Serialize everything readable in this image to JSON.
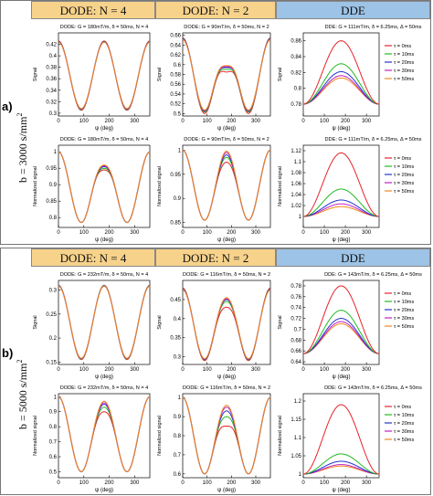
{
  "blocks": [
    {
      "letter": "a)",
      "b_text": "b = 3000 s/mm",
      "b_exp": "2",
      "headers": [
        "DODE: N = 4",
        "DODE: N = 2",
        "DDE"
      ]
    },
    {
      "letter": "b)",
      "b_text": "b = 5000 s/mm",
      "b_exp": "2",
      "headers": [
        "DODE: N = 4",
        "DODE: N = 2",
        "DDE"
      ]
    }
  ],
  "legend_labels": [
    "τ = 0ms",
    "τ = 10ms",
    "τ = 20ms",
    "τ = 30ms",
    "τ = 50ms"
  ],
  "series_colors": [
    "#e8232a",
    "#22bb22",
    "#2233cc",
    "#c020c0",
    "#f08a1e"
  ],
  "chart_data": [
    {
      "id": "a-r1-c1",
      "type": "line",
      "title": "DODE: G = 180mT/m, δ = 50ms, N = 4",
      "xlabel": "ψ (deg)",
      "ylabel": "Signal",
      "xlim": [
        0,
        360
      ],
      "xticks": [
        0,
        100,
        200,
        300
      ],
      "ylim": [
        0.295,
        0.44
      ],
      "yticks": [
        0.3,
        0.32,
        0.34,
        0.36,
        0.38,
        0.4,
        0.42
      ],
      "x": [
        0,
        20,
        40,
        60,
        80,
        100,
        120,
        140,
        160,
        180,
        200,
        220,
        240,
        260,
        280,
        300,
        320,
        340,
        360
      ],
      "shape": "n4",
      "series": [
        {
          "name": "τ = 0ms",
          "min": 0.305,
          "max": 0.426
        },
        {
          "name": "τ = 10ms",
          "min": 0.306,
          "max": 0.425
        },
        {
          "name": "τ = 20ms",
          "min": 0.307,
          "max": 0.425
        },
        {
          "name": "τ = 30ms",
          "min": 0.307,
          "max": 0.424
        },
        {
          "name": "τ = 50ms",
          "min": 0.308,
          "max": 0.424
        }
      ],
      "legend": false
    },
    {
      "id": "a-r1-c2",
      "type": "line",
      "title": "DODE: G = 90mT/m, δ = 50ms, N = 2",
      "xlabel": "ψ (deg)",
      "ylabel": "Signal",
      "xlim": [
        0,
        360
      ],
      "xticks": [
        0,
        100,
        200,
        300
      ],
      "ylim": [
        0.495,
        0.665
      ],
      "yticks": [
        0.5,
        0.52,
        0.54,
        0.56,
        0.58,
        0.6,
        0.62,
        0.64,
        0.66
      ],
      "x": [
        0,
        20,
        40,
        60,
        80,
        100,
        120,
        140,
        160,
        180,
        200,
        220,
        240,
        260,
        280,
        300,
        320,
        340,
        360
      ],
      "shape": "n2",
      "series": [
        {
          "name": "τ = 0ms",
          "min": 0.5,
          "max": 0.655,
          "mid": 0.585
        },
        {
          "name": "τ = 10ms",
          "min": 0.503,
          "max": 0.654,
          "mid": 0.59
        },
        {
          "name": "τ = 20ms",
          "min": 0.505,
          "max": 0.653,
          "mid": 0.594
        },
        {
          "name": "τ = 30ms",
          "min": 0.506,
          "max": 0.652,
          "mid": 0.596
        },
        {
          "name": "τ = 50ms",
          "min": 0.507,
          "max": 0.651,
          "mid": 0.598
        }
      ],
      "legend": false
    },
    {
      "id": "a-r1-c3",
      "type": "line",
      "title": "DDE: G = 111mT/m, δ = 6.25ms, Δ = 50ms",
      "xlabel": "ψ (deg)",
      "ylabel": "Signal",
      "xlim": [
        0,
        360
      ],
      "xticks": [
        0,
        100,
        200,
        300
      ],
      "ylim": [
        0.765,
        0.87
      ],
      "yticks": [
        0.78,
        0.8,
        0.82,
        0.84,
        0.86
      ],
      "x": [
        0,
        20,
        40,
        60,
        80,
        100,
        120,
        140,
        160,
        180,
        200,
        220,
        240,
        260,
        280,
        300,
        320,
        340,
        360
      ],
      "shape": "dde",
      "series": [
        {
          "name": "τ = 0ms",
          "min": 0.78,
          "max": 0.86
        },
        {
          "name": "τ = 10ms",
          "min": 0.78,
          "max": 0.831
        },
        {
          "name": "τ = 20ms",
          "min": 0.78,
          "max": 0.821
        },
        {
          "name": "τ = 30ms",
          "min": 0.78,
          "max": 0.816
        },
        {
          "name": "τ = 50ms",
          "min": 0.78,
          "max": 0.813
        }
      ],
      "legend": true
    },
    {
      "id": "a-r2-c1",
      "type": "line",
      "title": "DODE: G = 180mT/m, δ = 50ms, N = 4",
      "xlabel": "ψ (deg)",
      "ylabel": "Normalized signal",
      "xlim": [
        0,
        360
      ],
      "xticks": [
        0,
        100,
        200,
        300
      ],
      "ylim": [
        0.77,
        1.02
      ],
      "yticks": [
        0.8,
        0.85,
        0.9,
        0.95,
        1
      ],
      "x": [
        0,
        20,
        40,
        60,
        80,
        100,
        120,
        140,
        160,
        180,
        200,
        220,
        240,
        260,
        280,
        300,
        320,
        340,
        360
      ],
      "shape": "n4",
      "series": [
        {
          "name": "τ = 0ms",
          "min": 0.785,
          "max": 1.0,
          "mid": 0.945
        },
        {
          "name": "τ = 10ms",
          "min": 0.785,
          "max": 1.0,
          "mid": 0.95
        },
        {
          "name": "τ = 20ms",
          "min": 0.785,
          "max": 1.0,
          "mid": 0.955
        },
        {
          "name": "τ = 30ms",
          "min": 0.785,
          "max": 1.0,
          "mid": 0.958
        },
        {
          "name": "τ = 50ms",
          "min": 0.785,
          "max": 1.0,
          "mid": 0.96
        }
      ],
      "legend": false
    },
    {
      "id": "a-r2-c2",
      "type": "line",
      "title": "DODE: G = 90mT/m, δ = 50ms, N = 2",
      "xlabel": "ψ (deg)",
      "ylabel": "Normalized signal",
      "xlim": [
        0,
        360
      ],
      "xticks": [
        0,
        100,
        200,
        300
      ],
      "ylim": [
        0.84,
        1.01
      ],
      "yticks": [
        0.85,
        0.9,
        0.95,
        1
      ],
      "x": [
        0,
        20,
        40,
        60,
        80,
        100,
        120,
        140,
        160,
        180,
        200,
        220,
        240,
        260,
        280,
        300,
        320,
        340,
        360
      ],
      "shape": "n2",
      "series": [
        {
          "name": "τ = 0ms",
          "min": 0.855,
          "max": 1.0,
          "mid": 0.975
        },
        {
          "name": "τ = 10ms",
          "min": 0.855,
          "max": 1.0,
          "mid": 0.985
        },
        {
          "name": "τ = 20ms",
          "min": 0.855,
          "max": 1.0,
          "mid": 0.99
        },
        {
          "name": "τ = 30ms",
          "min": 0.855,
          "max": 1.0,
          "mid": 0.995
        },
        {
          "name": "τ = 50ms",
          "min": 0.855,
          "max": 1.0,
          "mid": 0.998
        }
      ],
      "legend": false
    },
    {
      "id": "a-r2-c3",
      "type": "line",
      "title": "DDE: G = 111mT/m, δ = 6.25ms, Δ = 50ms",
      "xlabel": "ψ (deg)",
      "ylabel": "Normalized signal",
      "xlim": [
        0,
        360
      ],
      "xticks": [
        0,
        100,
        200,
        300
      ],
      "ylim": [
        0.98,
        1.13
      ],
      "yticks": [
        1,
        1.02,
        1.04,
        1.06,
        1.08,
        1.1,
        1.12
      ],
      "x": [
        0,
        20,
        40,
        60,
        80,
        100,
        120,
        140,
        160,
        180,
        200,
        220,
        240,
        260,
        280,
        300,
        320,
        340,
        360
      ],
      "shape": "dde",
      "series": [
        {
          "name": "τ = 0ms",
          "min": 1.0,
          "max": 1.116
        },
        {
          "name": "τ = 10ms",
          "min": 1.0,
          "max": 1.05
        },
        {
          "name": "τ = 20ms",
          "min": 1.0,
          "max": 1.03
        },
        {
          "name": "τ = 30ms",
          "min": 1.0,
          "max": 1.023
        },
        {
          "name": "τ = 50ms",
          "min": 1.0,
          "max": 1.018
        }
      ],
      "legend": true
    },
    {
      "id": "b-r1-c1",
      "type": "line",
      "title": "DODE: G = 232mT/m, δ = 50ms, N = 4",
      "xlabel": "ψ (deg)",
      "ylabel": "Signal",
      "xlim": [
        0,
        360
      ],
      "xticks": [
        0,
        100,
        200,
        300
      ],
      "ylim": [
        0.145,
        0.32
      ],
      "yticks": [
        0.15,
        0.2,
        0.25,
        0.3
      ],
      "x": [
        0,
        20,
        40,
        60,
        80,
        100,
        120,
        140,
        160,
        180,
        200,
        220,
        240,
        260,
        280,
        300,
        320,
        340,
        360
      ],
      "shape": "n4",
      "series": [
        {
          "name": "τ = 0ms",
          "min": 0.155,
          "max": 0.31
        },
        {
          "name": "τ = 10ms",
          "min": 0.156,
          "max": 0.31
        },
        {
          "name": "τ = 20ms",
          "min": 0.157,
          "max": 0.309
        },
        {
          "name": "τ = 30ms",
          "min": 0.157,
          "max": 0.309
        },
        {
          "name": "τ = 50ms",
          "min": 0.158,
          "max": 0.308
        }
      ],
      "legend": false
    },
    {
      "id": "b-r1-c2",
      "type": "line",
      "title": "DODE: G = 116mT/m, δ = 50ms, N = 2",
      "xlabel": "ψ (deg)",
      "ylabel": "Signal",
      "xlim": [
        0,
        360
      ],
      "xticks": [
        0,
        100,
        200,
        300
      ],
      "ylim": [
        0.28,
        0.5
      ],
      "yticks": [
        0.3,
        0.35,
        0.4,
        0.45
      ],
      "x": [
        0,
        20,
        40,
        60,
        80,
        100,
        120,
        140,
        160,
        180,
        200,
        220,
        240,
        260,
        280,
        300,
        320,
        340,
        360
      ],
      "shape": "n2",
      "series": [
        {
          "name": "τ = 0ms",
          "min": 0.29,
          "max": 0.48,
          "mid": 0.43
        },
        {
          "name": "τ = 10ms",
          "min": 0.292,
          "max": 0.478,
          "mid": 0.445
        },
        {
          "name": "τ = 20ms",
          "min": 0.293,
          "max": 0.477,
          "mid": 0.45
        },
        {
          "name": "τ = 30ms",
          "min": 0.294,
          "max": 0.476,
          "mid": 0.452
        },
        {
          "name": "τ = 50ms",
          "min": 0.295,
          "max": 0.475,
          "mid": 0.455
        }
      ],
      "legend": false
    },
    {
      "id": "b-r1-c3",
      "type": "line",
      "title": "DDE: G = 143mT/m, δ = 6.25ms, Δ = 50ms",
      "xlabel": "ψ (deg)",
      "ylabel": "Signal",
      "xlim": [
        0,
        360
      ],
      "xticks": [
        0,
        100,
        200,
        300
      ],
      "ylim": [
        0.635,
        0.79
      ],
      "yticks": [
        0.64,
        0.66,
        0.68,
        0.7,
        0.72,
        0.74,
        0.76,
        0.78
      ],
      "x": [
        0,
        20,
        40,
        60,
        80,
        100,
        120,
        140,
        160,
        180,
        200,
        220,
        240,
        260,
        280,
        300,
        320,
        340,
        360
      ],
      "shape": "dde",
      "series": [
        {
          "name": "τ = 0ms",
          "min": 0.655,
          "max": 0.78
        },
        {
          "name": "τ = 10ms",
          "min": 0.655,
          "max": 0.735
        },
        {
          "name": "τ = 20ms",
          "min": 0.655,
          "max": 0.72
        },
        {
          "name": "τ = 30ms",
          "min": 0.655,
          "max": 0.714
        },
        {
          "name": "τ = 50ms",
          "min": 0.655,
          "max": 0.71
        }
      ],
      "legend": true
    },
    {
      "id": "b-r2-c1",
      "type": "line",
      "title": "DODE: G = 232mT/m, δ = 50ms, N = 4",
      "xlabel": "ψ (deg)",
      "ylabel": "Normalized signal",
      "xlim": [
        0,
        360
      ],
      "xticks": [
        0,
        100,
        200,
        300
      ],
      "ylim": [
        0.46,
        1.02
      ],
      "yticks": [
        0.5,
        0.6,
        0.7,
        0.8,
        0.9,
        1
      ],
      "x": [
        0,
        20,
        40,
        60,
        80,
        100,
        120,
        140,
        160,
        180,
        200,
        220,
        240,
        260,
        280,
        300,
        320,
        340,
        360
      ],
      "shape": "n4",
      "series": [
        {
          "name": "τ = 0ms",
          "min": 0.5,
          "max": 1.0,
          "mid": 0.9
        },
        {
          "name": "τ = 10ms",
          "min": 0.5,
          "max": 1.0,
          "mid": 0.93
        },
        {
          "name": "τ = 20ms",
          "min": 0.5,
          "max": 1.0,
          "mid": 0.95
        },
        {
          "name": "τ = 30ms",
          "min": 0.5,
          "max": 1.0,
          "mid": 0.96
        },
        {
          "name": "τ = 50ms",
          "min": 0.5,
          "max": 1.0,
          "mid": 0.97
        }
      ],
      "legend": false
    },
    {
      "id": "b-r2-c2",
      "type": "line",
      "title": "DODE: G = 116mT/m, δ = 50ms, N = 2",
      "xlabel": "ψ (deg)",
      "ylabel": "Normalized signal",
      "xlim": [
        0,
        360
      ],
      "xticks": [
        0,
        100,
        200,
        300
      ],
      "ylim": [
        0.58,
        1.02
      ],
      "yticks": [
        0.6,
        0.7,
        0.8,
        0.9,
        1
      ],
      "x": [
        0,
        20,
        40,
        60,
        80,
        100,
        120,
        140,
        160,
        180,
        200,
        220,
        240,
        260,
        280,
        300,
        320,
        340,
        360
      ],
      "shape": "n2",
      "series": [
        {
          "name": "τ = 0ms",
          "min": 0.6,
          "max": 1.0,
          "mid": 0.85
        },
        {
          "name": "τ = 10ms",
          "min": 0.6,
          "max": 1.0,
          "mid": 0.9
        },
        {
          "name": "τ = 20ms",
          "min": 0.6,
          "max": 1.0,
          "mid": 0.93
        },
        {
          "name": "τ = 30ms",
          "min": 0.6,
          "max": 1.0,
          "mid": 0.95
        },
        {
          "name": "τ = 50ms",
          "min": 0.6,
          "max": 1.0,
          "mid": 0.96
        }
      ],
      "legend": false
    },
    {
      "id": "b-r2-c3",
      "type": "line",
      "title": "DDE: G = 143mT/m, δ = 6.25ms, Δ = 50ms",
      "xlabel": "ψ (deg)",
      "ylabel": "Normalized signal",
      "xlim": [
        0,
        360
      ],
      "xticks": [
        0,
        100,
        200,
        300
      ],
      "ylim": [
        0.99,
        1.22
      ],
      "yticks": [
        1,
        1.05,
        1.1,
        1.15,
        1.2
      ],
      "x": [
        0,
        20,
        40,
        60,
        80,
        100,
        120,
        140,
        160,
        180,
        200,
        220,
        240,
        260,
        280,
        300,
        320,
        340,
        360
      ],
      "shape": "dde",
      "series": [
        {
          "name": "τ = 0ms",
          "min": 1.0,
          "max": 1.19
        },
        {
          "name": "τ = 10ms",
          "min": 1.0,
          "max": 1.055
        },
        {
          "name": "τ = 20ms",
          "min": 1.0,
          "max": 1.035
        },
        {
          "name": "τ = 30ms",
          "min": 1.0,
          "max": 1.026
        },
        {
          "name": "τ = 50ms",
          "min": 1.0,
          "max": 1.022
        }
      ],
      "legend": true
    }
  ]
}
